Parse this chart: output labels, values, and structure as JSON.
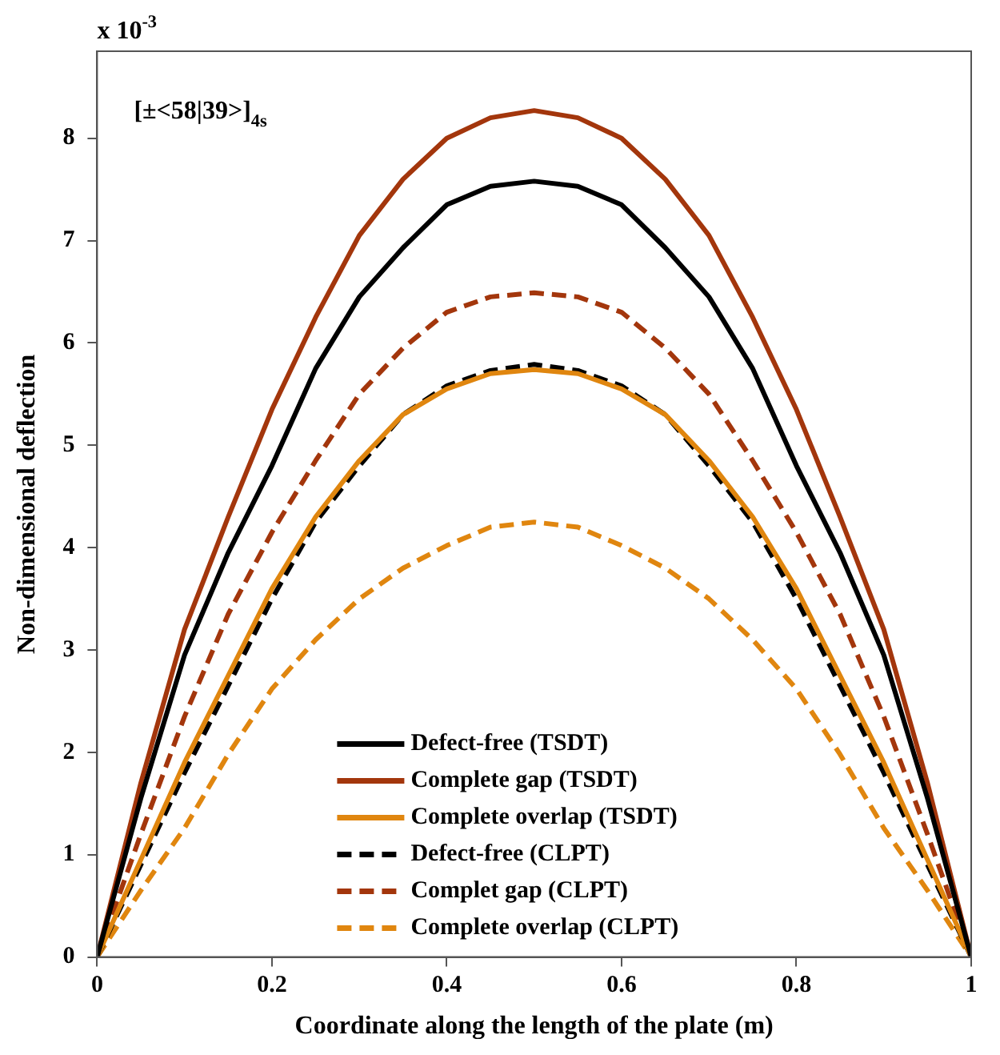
{
  "chart_data": {
    "type": "line",
    "xlabel": "Coordinate along the length of the plate (m)",
    "ylabel": "Non-dimensional deflection",
    "annotations": [
      "x 10$^{-3}$",
      "[±<58|39>]$_{4s}$"
    ],
    "x": [
      0,
      0.05,
      0.1,
      0.15,
      0.2,
      0.25,
      0.3,
      0.35,
      0.4,
      0.45,
      0.5,
      0.55,
      0.6,
      0.65,
      0.7,
      0.75,
      0.8,
      0.85,
      0.9,
      0.95,
      1
    ],
    "xlim": [
      0,
      1
    ],
    "xticks": [
      0,
      0.2,
      0.4,
      0.6,
      0.8,
      1
    ],
    "ylim": [
      0,
      8.85
    ],
    "yticks": [
      0,
      1,
      2,
      3,
      4,
      5,
      6,
      7,
      8
    ],
    "grid": false,
    "legend": "bottom",
    "marker": "none",
    "series": [
      {
        "name": "Defect-free (TSDT)",
        "color": "#000000",
        "line_style": "solid",
        "values": [
          0,
          1.55,
          2.95,
          3.95,
          4.8,
          5.75,
          6.45,
          6.93,
          7.35,
          7.53,
          7.58,
          7.53,
          7.35,
          6.93,
          6.45,
          5.75,
          4.8,
          3.95,
          2.95,
          1.55,
          0
        ]
      },
      {
        "name": "Complete gap (TSDT)",
        "color": "#a3360c",
        "line_style": "solid",
        "values": [
          0,
          1.7,
          3.2,
          4.3,
          5.35,
          6.25,
          7.05,
          7.6,
          8.0,
          8.2,
          8.27,
          8.2,
          8.0,
          7.6,
          7.05,
          6.25,
          5.35,
          4.3,
          3.2,
          1.7,
          0
        ]
      },
      {
        "name": "Complete overlap (TSDT)",
        "color": "#e0860f",
        "line_style": "solid",
        "values": [
          0,
          0.95,
          1.9,
          2.75,
          3.6,
          4.3,
          4.85,
          5.3,
          5.55,
          5.7,
          5.74,
          5.7,
          5.55,
          5.3,
          4.85,
          4.3,
          3.6,
          2.75,
          1.9,
          0.95,
          0
        ]
      },
      {
        "name": "Defect-free (CLPT)",
        "color": "#000000",
        "line_style": "dashed",
        "values": [
          0,
          0.9,
          1.8,
          2.65,
          3.5,
          4.25,
          4.8,
          5.3,
          5.58,
          5.73,
          5.79,
          5.73,
          5.58,
          5.3,
          4.8,
          4.25,
          3.5,
          2.65,
          1.8,
          0.9,
          0
        ]
      },
      {
        "name": "Complet gap (CLPT)",
        "color": "#a3360c",
        "line_style": "dashed",
        "values": [
          0,
          1.2,
          2.35,
          3.35,
          4.15,
          4.85,
          5.5,
          5.95,
          6.3,
          6.45,
          6.49,
          6.45,
          6.3,
          5.95,
          5.5,
          4.85,
          4.15,
          3.35,
          2.35,
          1.2,
          0
        ]
      },
      {
        "name": "Complete overlap (CLPT)",
        "color": "#e0860f",
        "line_style": "dashed",
        "values": [
          0,
          0.65,
          1.26,
          1.98,
          2.62,
          3.1,
          3.5,
          3.8,
          4.02,
          4.2,
          4.25,
          4.2,
          4.02,
          3.8,
          3.5,
          3.1,
          2.62,
          1.98,
          1.26,
          0.65,
          0
        ]
      }
    ]
  }
}
